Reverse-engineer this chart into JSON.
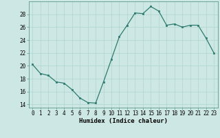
{
  "x": [
    0,
    1,
    2,
    3,
    4,
    5,
    6,
    7,
    8,
    9,
    10,
    11,
    12,
    13,
    14,
    15,
    16,
    17,
    18,
    19,
    20,
    21,
    22,
    23
  ],
  "y": [
    20.2,
    18.8,
    18.5,
    17.5,
    17.3,
    16.3,
    15.0,
    14.3,
    14.2,
    17.5,
    21.0,
    24.5,
    26.3,
    28.2,
    28.1,
    29.2,
    28.5,
    26.3,
    26.5,
    26.0,
    26.3,
    26.3,
    24.3,
    22.0
  ],
  "title": "",
  "xlabel": "Humidex (Indice chaleur)",
  "ylabel": "",
  "xlim": [
    -0.5,
    23.5
  ],
  "ylim": [
    13.5,
    30.0
  ],
  "yticks": [
    14,
    16,
    18,
    20,
    22,
    24,
    26,
    28
  ],
  "xticks": [
    0,
    1,
    2,
    3,
    4,
    5,
    6,
    7,
    8,
    9,
    10,
    11,
    12,
    13,
    14,
    15,
    16,
    17,
    18,
    19,
    20,
    21,
    22,
    23
  ],
  "line_color": "#2d7a6e",
  "marker_color": "#2d7a6e",
  "bg_color": "#cde8e4",
  "grid_color": "#b0d4cf",
  "label_fontsize": 6.5,
  "tick_fontsize": 5.5
}
